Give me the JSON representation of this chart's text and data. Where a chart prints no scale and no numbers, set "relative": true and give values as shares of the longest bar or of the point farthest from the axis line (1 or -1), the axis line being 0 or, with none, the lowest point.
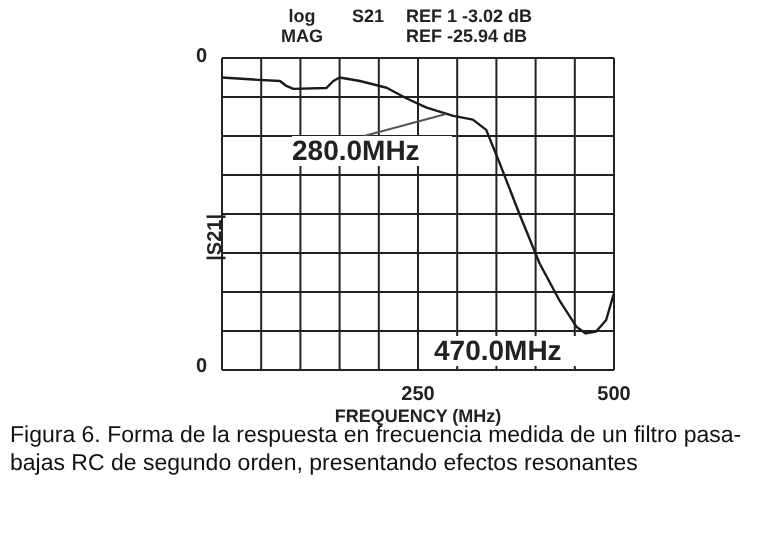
{
  "chart_data": {
    "type": "line",
    "xlabel": "FREQUENCY (MHz)",
    "ylabel": "|S21|",
    "relative": true,
    "x": [
      0,
      40,
      74,
      82,
      91,
      133,
      142,
      150,
      176,
      210,
      235,
      261,
      295,
      320,
      337,
      354,
      379,
      405,
      430,
      452,
      464,
      477,
      490,
      500
    ],
    "series": [
      {
        "color": "#1a1a1a",
        "values": [
          1,
          0.993,
          0.988,
          0.971,
          0.961,
          0.964,
          0.988,
          1,
          0.988,
          0.965,
          0.929,
          0.897,
          0.869,
          0.856,
          0.821,
          0.708,
          0.536,
          0.365,
          0.24,
          0.148,
          0.125,
          0.131,
          0.171,
          0.263
        ]
      }
    ],
    "xlim": [
      0,
      500
    ],
    "xticks": [
      {
        "value": 0,
        "label": null
      },
      {
        "value": 50,
        "label": null
      },
      {
        "value": 100,
        "label": null
      },
      {
        "value": 150,
        "label": null
      },
      {
        "value": 200,
        "label": null
      },
      250,
      {
        "value": 300,
        "label": null
      },
      {
        "value": 350,
        "label": null
      },
      {
        "value": 400,
        "label": null
      },
      {
        "value": 450,
        "label": null
      },
      500
    ],
    "grid": true,
    "marker": "none",
    "line_style": "solid",
    "annotations": [
      "log MAG",
      "S21",
      "REF 1 -3.02 dB",
      "REF -25.94 dB",
      "0",
      "0",
      "280.0MHz",
      "470.0MHz",
      "Figura 6. Forma de la respuesta en frecuencia medida de un filtro pasa-bajas RC de segundo orden, presentando efectos resonantes"
    ]
  }
}
